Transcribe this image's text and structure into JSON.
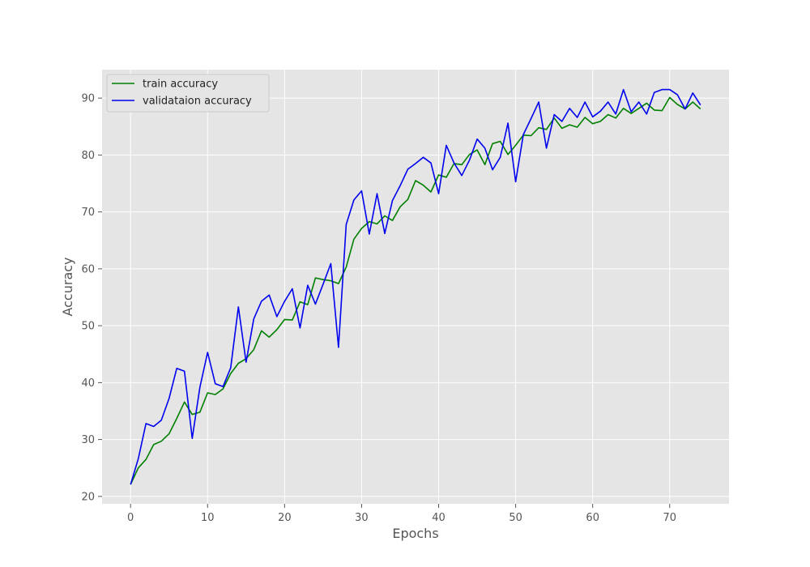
{
  "chart_data": {
    "type": "line",
    "title": "",
    "xlabel": "Epochs",
    "ylabel": "Accuracy",
    "xlim": [
      -3.7,
      77.7
    ],
    "ylim": [
      18.7,
      95
    ],
    "xticks": [
      0,
      10,
      20,
      30,
      40,
      50,
      60,
      70
    ],
    "yticks": [
      20,
      30,
      40,
      50,
      60,
      70,
      80,
      90
    ],
    "grid": true,
    "legend_position": "top-left",
    "x": [
      0,
      1,
      2,
      3,
      4,
      5,
      6,
      7,
      8,
      9,
      10,
      11,
      12,
      13,
      14,
      15,
      16,
      17,
      18,
      19,
      20,
      21,
      22,
      23,
      24,
      25,
      26,
      27,
      28,
      29,
      30,
      31,
      32,
      33,
      34,
      35,
      36,
      37,
      38,
      39,
      40,
      41,
      42,
      43,
      44,
      45,
      46,
      47,
      48,
      49,
      50,
      51,
      52,
      53,
      54,
      55,
      56,
      57,
      58,
      59,
      60,
      61,
      62,
      63,
      64,
      65,
      66,
      67,
      68,
      69,
      70,
      71,
      72,
      73,
      74
    ],
    "series": [
      {
        "name": "train accuracy",
        "color": "#008000",
        "values": [
          22.1,
          25.0,
          26.5,
          29.1,
          29.7,
          31.0,
          33.7,
          36.6,
          34.4,
          34.8,
          38.2,
          37.9,
          38.9,
          41.6,
          43.4,
          44.2,
          45.8,
          49.1,
          48.0,
          49.3,
          51.1,
          51.0,
          54.2,
          53.7,
          58.4,
          58.1,
          57.9,
          57.4,
          60.3,
          65.2,
          67.1,
          68.3,
          67.9,
          69.3,
          68.5,
          70.9,
          72.2,
          75.5,
          74.7,
          73.5,
          76.5,
          76.1,
          78.5,
          78.3,
          80.1,
          80.9,
          78.3,
          82.0,
          82.4,
          80.1,
          81.7,
          83.5,
          83.4,
          84.8,
          84.5,
          86.5,
          84.7,
          85.3,
          84.9,
          86.6,
          85.5,
          85.9,
          87.1,
          86.5,
          88.2,
          87.3,
          88.2,
          89.1,
          87.9,
          87.8,
          90.1,
          88.9,
          88.1,
          89.3,
          88.1
        ]
      },
      {
        "name": "validataion accuracy",
        "color": "#0000ee",
        "values": [
          22.1,
          26.6,
          32.8,
          32.3,
          33.4,
          37.2,
          42.5,
          42.0,
          30.2,
          39.2,
          45.3,
          39.8,
          39.3,
          42.6,
          53.3,
          43.6,
          51.2,
          54.3,
          55.4,
          51.6,
          54.3,
          56.5,
          49.6,
          57.1,
          53.8,
          57.3,
          60.9,
          46.2,
          67.8,
          72.1,
          73.7,
          66.1,
          73.2,
          66.2,
          72.0,
          74.6,
          77.5,
          78.5,
          79.6,
          78.6,
          73.2,
          81.7,
          78.6,
          76.4,
          79.1,
          82.8,
          81.2,
          77.4,
          79.6,
          85.6,
          75.3,
          83.6,
          86.4,
          89.3,
          81.2,
          87.1,
          85.9,
          88.2,
          86.6,
          89.3,
          86.7,
          87.7,
          89.3,
          87.2,
          91.5,
          87.6,
          89.3,
          87.2,
          91.0,
          91.5,
          91.5,
          90.6,
          88.1,
          90.9,
          88.8
        ]
      }
    ]
  }
}
